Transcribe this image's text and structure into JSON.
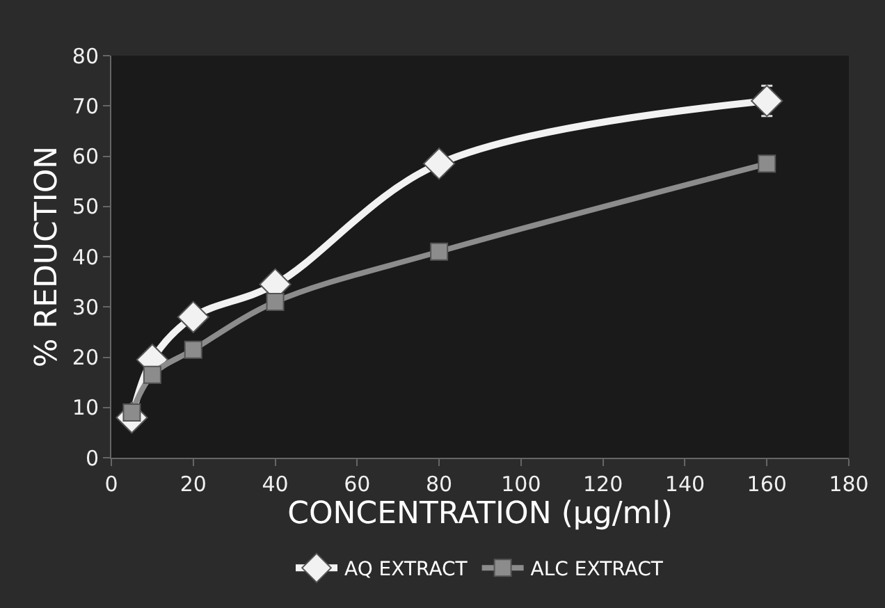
{
  "chart_data": {
    "type": "line",
    "xlabel": "CONCENTRATION (µg/ml)",
    "ylabel": "% REDUCTION",
    "x": [
      5,
      10,
      20,
      40,
      80,
      160
    ],
    "series": [
      {
        "name": "AQ EXTRACT",
        "color": "#f2f2f2",
        "marker": "diamond",
        "values": [
          8,
          19.5,
          28,
          34.5,
          58.5,
          71
        ],
        "errors": [
          null,
          null,
          null,
          null,
          2,
          3
        ]
      },
      {
        "name": "ALC EXTRACT",
        "color": "#8c8c8c",
        "marker": "square",
        "values": [
          9,
          16.5,
          21.5,
          31,
          41,
          58.5
        ]
      }
    ],
    "xlim": [
      0,
      180
    ],
    "xticks": [
      0,
      20,
      40,
      60,
      80,
      100,
      120,
      140,
      160,
      180
    ],
    "ylim": [
      0,
      80
    ],
    "yticks": [
      0,
      10,
      20,
      30,
      40,
      50,
      60,
      70,
      80
    ],
    "grid": false,
    "legend": "bottom"
  }
}
